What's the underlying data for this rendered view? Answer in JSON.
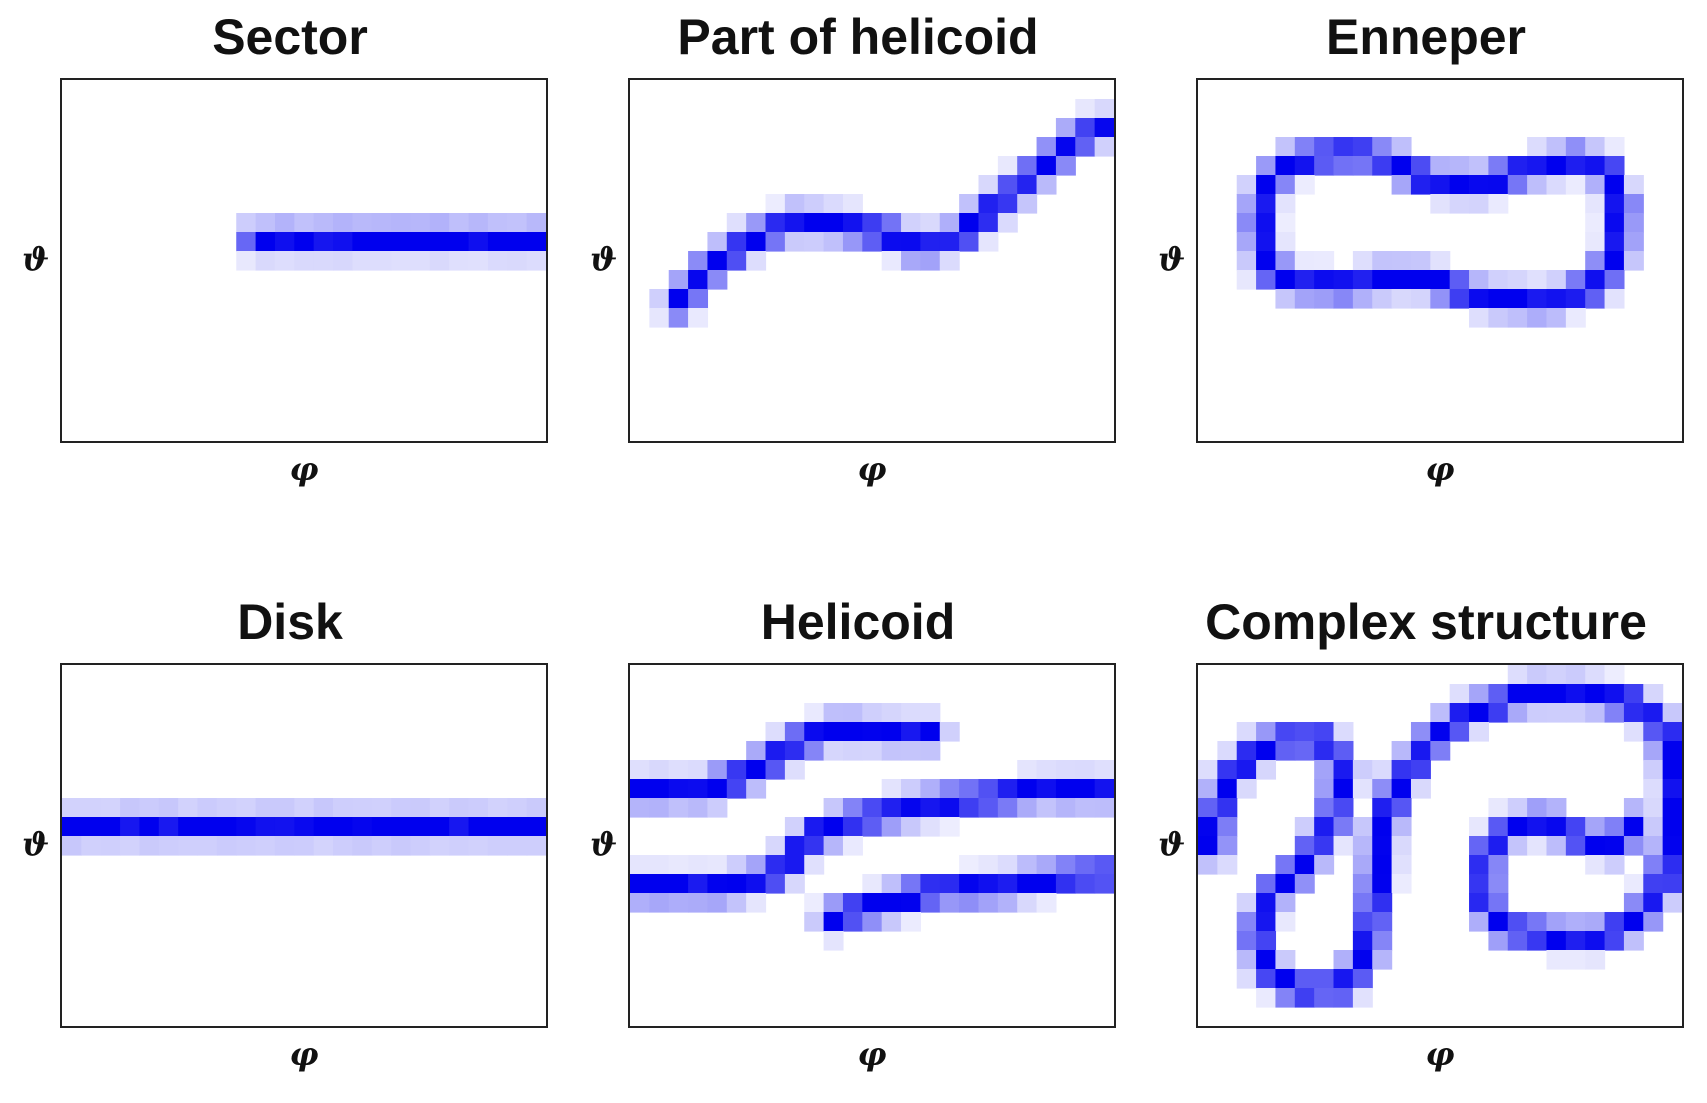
{
  "chart_data": [
    {
      "type": "heatmap",
      "title": "Sector",
      "xlabel": "φ",
      "ylabel": "ϑ",
      "grid": false,
      "axis_ticks": false,
      "colormap": [
        "#ffffff",
        "#0000ee"
      ],
      "cells": [
        "#####",
        "#####",
        "#####",
        "#####",
        "#####",
        "#####",
        "#####",
        "#####",
        "#####",
        "#####",
        "#####",
        "#####",
        "#####",
        "#####"
      ],
      "ridges": [
        {
          "pts": [
            [
              10,
              8.4
            ],
            [
              28,
              8.4
            ]
          ],
          "w": 1.05
        }
      ]
    },
    {
      "type": "heatmap",
      "title": "Part of helicoid",
      "xlabel": "φ",
      "ylabel": "ϑ",
      "grid": false,
      "axis_ticks": false,
      "colormap": [
        "#ffffff",
        "#0000ee"
      ],
      "ridges": [
        {
          "pts": [
            [
              2.5,
              11.8
            ],
            [
              4,
              10
            ],
            [
              6,
              8.5
            ],
            [
              8.5,
              7.4
            ],
            [
              11,
              7.6
            ],
            [
              13,
              8.0
            ],
            [
              15,
              8.8
            ],
            [
              17,
              8.2
            ],
            [
              19,
              6.5
            ],
            [
              21,
              4.8
            ],
            [
              23,
              3.2
            ],
            [
              24.2,
              2.5
            ]
          ],
          "w": 1.05
        }
      ]
    },
    {
      "type": "heatmap",
      "title": "Enneper",
      "xlabel": "φ",
      "ylabel": "ϑ",
      "grid": false,
      "axis_ticks": false,
      "colormap": [
        "#ffffff",
        "#0000ee"
      ],
      "ridges": [
        {
          "pts": [
            [
              4.5,
              4.5
            ],
            [
              6,
              4
            ],
            [
              8,
              3.8
            ],
            [
              10,
              4.3
            ],
            [
              12,
              5.3
            ],
            [
              14.5,
              5.5
            ],
            [
              17,
              4.7
            ],
            [
              19.5,
              4.2
            ],
            [
              21,
              4.6
            ],
            [
              21.8,
              6.5
            ],
            [
              21.7,
              9
            ],
            [
              20.5,
              10.9
            ],
            [
              18,
              11.7
            ],
            [
              14.5,
              11.4
            ],
            [
              12,
              10.5
            ],
            [
              10,
              10.4
            ],
            [
              7.5,
              10.8
            ],
            [
              5,
              10.7
            ],
            [
              3.5,
              9.8
            ],
            [
              3.2,
              7.5
            ],
            [
              3.5,
              5.5
            ],
            [
              4.5,
              4.5
            ]
          ],
          "w": 1.05
        }
      ]
    },
    {
      "type": "heatmap",
      "title": "Disk",
      "xlabel": "φ",
      "ylabel": "ϑ",
      "grid": false,
      "axis_ticks": false,
      "colormap": [
        "#ffffff",
        "#0000ee"
      ],
      "ridges": [
        {
          "pts": [
            [
              0,
              8.5
            ],
            [
              25,
              8.5
            ]
          ],
          "w": 1.05
        }
      ]
    },
    {
      "type": "heatmap",
      "title": "Helicoid",
      "xlabel": "φ",
      "ylabel": "ϑ",
      "grid": false,
      "axis_ticks": false,
      "colormap": [
        "#ffffff",
        "#0000ee"
      ],
      "ridges": [
        {
          "pts": [
            [
              0,
              6.6
            ],
            [
              4,
              6.6
            ],
            [
              6.5,
              5.5
            ],
            [
              8.5,
              4.2
            ],
            [
              10.5,
              3.4
            ],
            [
              13,
              3.5
            ],
            [
              15.5,
              3.6
            ]
          ],
          "w": 1.05
        },
        {
          "pts": [
            [
              0,
              11.7
            ],
            [
              5,
              11.7
            ],
            [
              7.5,
              11
            ],
            [
              9.5,
              8.9
            ],
            [
              12,
              8.0
            ],
            [
              15,
              7.4
            ],
            [
              18,
              7.0
            ],
            [
              21,
              6.6
            ],
            [
              25,
              6.6
            ]
          ],
          "w": 1.05
        },
        {
          "pts": [
            [
              10.5,
              13.3
            ],
            [
              13,
              12.6
            ],
            [
              16,
              11.8
            ],
            [
              19,
              11.7
            ],
            [
              22,
              11.2
            ],
            [
              25,
              11.0
            ]
          ],
          "w": 1.05
        }
      ]
    },
    {
      "type": "heatmap",
      "title": "Complex structure",
      "xlabel": "φ",
      "ylabel": "ϑ",
      "grid": false,
      "axis_ticks": false,
      "colormap": [
        "#ffffff",
        "#0000ee"
      ],
      "ridges": [
        {
          "pts": [
            [
              0.5,
              9.5
            ],
            [
              1.5,
              6
            ],
            [
              3,
              4.5
            ],
            [
              4.5,
              4
            ],
            [
              6.5,
              4
            ],
            [
              7.5,
              5.5
            ],
            [
              7,
              8
            ],
            [
              5.5,
              10.5
            ],
            [
              3.8,
              12
            ],
            [
              3,
              14
            ],
            [
              3.5,
              16
            ],
            [
              5,
              17
            ],
            [
              7.5,
              17
            ],
            [
              8.8,
              15
            ],
            [
              9.2,
              12
            ],
            [
              9.5,
              8.5
            ],
            [
              10.5,
              6
            ],
            [
              12,
              4
            ],
            [
              14,
              2.5
            ],
            [
              17,
              1.5
            ],
            [
              20,
              1.5
            ],
            [
              22.5,
              2
            ],
            [
              24.2,
              3.5
            ],
            [
              24.6,
              6
            ],
            [
              24.5,
              9
            ],
            [
              24,
              11.5
            ],
            [
              22.8,
              13.3
            ],
            [
              21,
              14.3
            ],
            [
              18,
              14.3
            ],
            [
              15.8,
              13.8
            ],
            [
              14.8,
              12.5
            ],
            [
              14.8,
              10
            ],
            [
              16,
              8.6
            ],
            [
              18,
              8.2
            ],
            [
              20,
              9.2
            ],
            [
              21.5,
              9.5
            ],
            [
              22.5,
              8.4
            ]
          ],
          "w": 1.05
        },
        {
          "pts": [
            [
              0,
              8.5
            ],
            [
              0.8,
              9.7
            ]
          ],
          "w": 1.0
        }
      ]
    }
  ]
}
